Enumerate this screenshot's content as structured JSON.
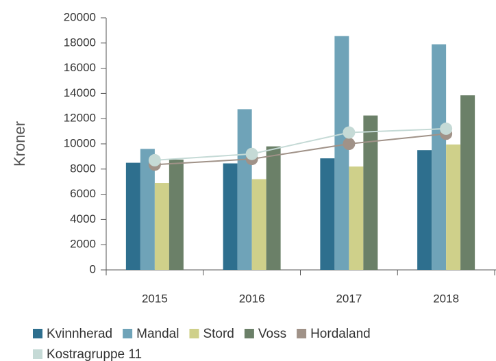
{
  "chart_data": {
    "type": "bar",
    "y_label": "Kroner",
    "categories": [
      "2015",
      "2016",
      "2017",
      "2018"
    ],
    "series": [
      {
        "name": "Kvinnherad",
        "color": "#2e6f8e",
        "values": [
          8500,
          8450,
          8850,
          9500
        ]
      },
      {
        "name": "Mandal",
        "color": "#6fa3b8",
        "values": [
          9600,
          12750,
          18550,
          17900
        ]
      },
      {
        "name": "Stord",
        "color": "#cfd08a",
        "values": [
          6900,
          7200,
          8200,
          9950
        ]
      },
      {
        "name": "Voss",
        "color": "#6b8068",
        "values": [
          8750,
          9800,
          12250,
          13850
        ]
      },
      {
        "name": "Hordaland",
        "color": "#a09288",
        "type": "line",
        "values": [
          8350,
          8800,
          10000,
          10800
        ]
      },
      {
        "name": "Kostragruppe 11",
        "color": "#c5dad6",
        "type": "line",
        "values": [
          8700,
          9200,
          10900,
          11200
        ]
      }
    ],
    "ylim": [
      0,
      20000
    ],
    "yticks": [
      0,
      2000,
      4000,
      6000,
      8000,
      10000,
      12000,
      14000,
      16000,
      18000,
      20000
    ],
    "legend": "bottom"
  }
}
